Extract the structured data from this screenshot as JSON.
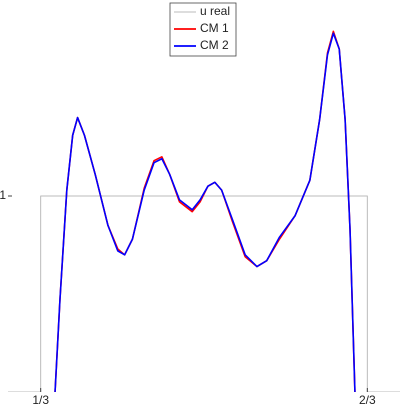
{
  "chart_data": {
    "type": "line",
    "xlim": [
      0.3,
      0.7
    ],
    "ylim": [
      0,
      2
    ],
    "xticks": [
      {
        "value": 0.333333,
        "label": "1/3"
      },
      {
        "value": 0.666667,
        "label": "2/3"
      }
    ],
    "yticks": [
      1
    ],
    "legend": "top",
    "series": [
      {
        "name": "u real",
        "color": "#bbbbbb",
        "x": [
          0.3,
          0.333333,
          0.333333,
          0.666667,
          0.666667,
          0.7
        ],
        "values": [
          0,
          0,
          1,
          1,
          0,
          0
        ]
      },
      {
        "name": "CM 1",
        "color": "#ff0000",
        "x": [
          0.348,
          0.353,
          0.36,
          0.366,
          0.371,
          0.378,
          0.389,
          0.402,
          0.412,
          0.419,
          0.427,
          0.439,
          0.449,
          0.457,
          0.465,
          0.475,
          0.488,
          0.496,
          0.504,
          0.511,
          0.518,
          0.529,
          0.542,
          0.554,
          0.564,
          0.577,
          0.593,
          0.608,
          0.618,
          0.626,
          0.632,
          0.638,
          0.644,
          0.649,
          0.654
        ],
        "values": [
          0,
          0.47,
          1.03,
          1.31,
          1.4,
          1.31,
          1.11,
          0.85,
          0.73,
          0.7,
          0.78,
          1.04,
          1.18,
          1.2,
          1.11,
          0.97,
          0.92,
          0.97,
          1.05,
          1.07,
          1.03,
          0.87,
          0.69,
          0.64,
          0.67,
          0.78,
          0.9,
          1.08,
          1.39,
          1.73,
          1.84,
          1.75,
          1.39,
          0.83,
          0
        ]
      },
      {
        "name": "CM 2",
        "color": "#0000ff",
        "x": [
          0.348,
          0.353,
          0.36,
          0.366,
          0.371,
          0.378,
          0.389,
          0.402,
          0.412,
          0.419,
          0.427,
          0.439,
          0.449,
          0.457,
          0.465,
          0.475,
          0.488,
          0.496,
          0.504,
          0.511,
          0.518,
          0.529,
          0.542,
          0.554,
          0.564,
          0.577,
          0.593,
          0.608,
          0.618,
          0.626,
          0.632,
          0.638,
          0.644,
          0.649,
          0.654
        ],
        "values": [
          0,
          0.47,
          1.03,
          1.31,
          1.4,
          1.31,
          1.11,
          0.85,
          0.72,
          0.7,
          0.78,
          1.03,
          1.17,
          1.19,
          1.11,
          0.98,
          0.93,
          0.98,
          1.05,
          1.07,
          1.03,
          0.88,
          0.7,
          0.64,
          0.67,
          0.79,
          0.9,
          1.08,
          1.39,
          1.72,
          1.83,
          1.75,
          1.39,
          0.83,
          0
        ]
      }
    ]
  }
}
